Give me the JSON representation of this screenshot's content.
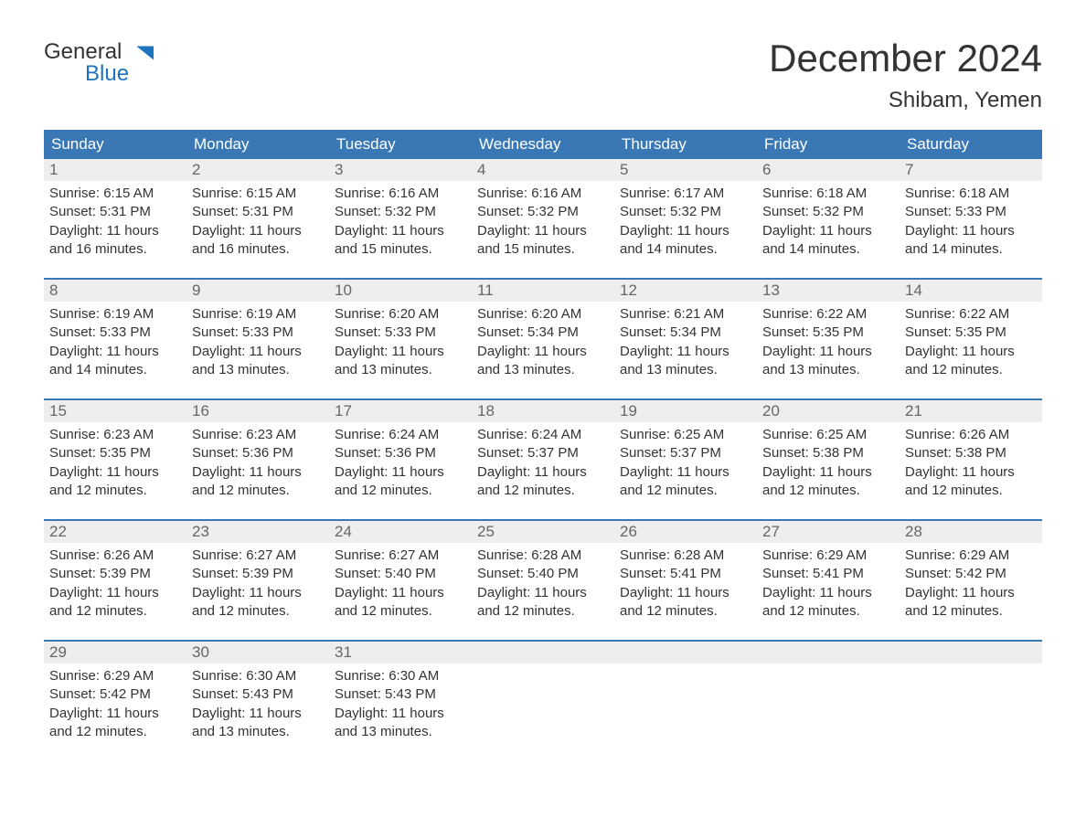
{
  "logo": {
    "word1": "General",
    "word2": "Blue"
  },
  "title": "December 2024",
  "location": "Shibam, Yemen",
  "colors": {
    "header_bg": "#3a78b5",
    "header_text": "#ffffff",
    "daynum_bg": "#eeeeee",
    "daynum_text": "#666666",
    "body_text": "#333333",
    "page_bg": "#ffffff",
    "logo_blue": "#1e73be"
  },
  "day_names": [
    "Sunday",
    "Monday",
    "Tuesday",
    "Wednesday",
    "Thursday",
    "Friday",
    "Saturday"
  ],
  "weeks": [
    [
      {
        "n": "1",
        "sunrise": "6:15 AM",
        "sunset": "5:31 PM",
        "daylight": "11 hours and 16 minutes."
      },
      {
        "n": "2",
        "sunrise": "6:15 AM",
        "sunset": "5:31 PM",
        "daylight": "11 hours and 16 minutes."
      },
      {
        "n": "3",
        "sunrise": "6:16 AM",
        "sunset": "5:32 PM",
        "daylight": "11 hours and 15 minutes."
      },
      {
        "n": "4",
        "sunrise": "6:16 AM",
        "sunset": "5:32 PM",
        "daylight": "11 hours and 15 minutes."
      },
      {
        "n": "5",
        "sunrise": "6:17 AM",
        "sunset": "5:32 PM",
        "daylight": "11 hours and 14 minutes."
      },
      {
        "n": "6",
        "sunrise": "6:18 AM",
        "sunset": "5:32 PM",
        "daylight": "11 hours and 14 minutes."
      },
      {
        "n": "7",
        "sunrise": "6:18 AM",
        "sunset": "5:33 PM",
        "daylight": "11 hours and 14 minutes."
      }
    ],
    [
      {
        "n": "8",
        "sunrise": "6:19 AM",
        "sunset": "5:33 PM",
        "daylight": "11 hours and 14 minutes."
      },
      {
        "n": "9",
        "sunrise": "6:19 AM",
        "sunset": "5:33 PM",
        "daylight": "11 hours and 13 minutes."
      },
      {
        "n": "10",
        "sunrise": "6:20 AM",
        "sunset": "5:33 PM",
        "daylight": "11 hours and 13 minutes."
      },
      {
        "n": "11",
        "sunrise": "6:20 AM",
        "sunset": "5:34 PM",
        "daylight": "11 hours and 13 minutes."
      },
      {
        "n": "12",
        "sunrise": "6:21 AM",
        "sunset": "5:34 PM",
        "daylight": "11 hours and 13 minutes."
      },
      {
        "n": "13",
        "sunrise": "6:22 AM",
        "sunset": "5:35 PM",
        "daylight": "11 hours and 13 minutes."
      },
      {
        "n": "14",
        "sunrise": "6:22 AM",
        "sunset": "5:35 PM",
        "daylight": "11 hours and 12 minutes."
      }
    ],
    [
      {
        "n": "15",
        "sunrise": "6:23 AM",
        "sunset": "5:35 PM",
        "daylight": "11 hours and 12 minutes."
      },
      {
        "n": "16",
        "sunrise": "6:23 AM",
        "sunset": "5:36 PM",
        "daylight": "11 hours and 12 minutes."
      },
      {
        "n": "17",
        "sunrise": "6:24 AM",
        "sunset": "5:36 PM",
        "daylight": "11 hours and 12 minutes."
      },
      {
        "n": "18",
        "sunrise": "6:24 AM",
        "sunset": "5:37 PM",
        "daylight": "11 hours and 12 minutes."
      },
      {
        "n": "19",
        "sunrise": "6:25 AM",
        "sunset": "5:37 PM",
        "daylight": "11 hours and 12 minutes."
      },
      {
        "n": "20",
        "sunrise": "6:25 AM",
        "sunset": "5:38 PM",
        "daylight": "11 hours and 12 minutes."
      },
      {
        "n": "21",
        "sunrise": "6:26 AM",
        "sunset": "5:38 PM",
        "daylight": "11 hours and 12 minutes."
      }
    ],
    [
      {
        "n": "22",
        "sunrise": "6:26 AM",
        "sunset": "5:39 PM",
        "daylight": "11 hours and 12 minutes."
      },
      {
        "n": "23",
        "sunrise": "6:27 AM",
        "sunset": "5:39 PM",
        "daylight": "11 hours and 12 minutes."
      },
      {
        "n": "24",
        "sunrise": "6:27 AM",
        "sunset": "5:40 PM",
        "daylight": "11 hours and 12 minutes."
      },
      {
        "n": "25",
        "sunrise": "6:28 AM",
        "sunset": "5:40 PM",
        "daylight": "11 hours and 12 minutes."
      },
      {
        "n": "26",
        "sunrise": "6:28 AM",
        "sunset": "5:41 PM",
        "daylight": "11 hours and 12 minutes."
      },
      {
        "n": "27",
        "sunrise": "6:29 AM",
        "sunset": "5:41 PM",
        "daylight": "11 hours and 12 minutes."
      },
      {
        "n": "28",
        "sunrise": "6:29 AM",
        "sunset": "5:42 PM",
        "daylight": "11 hours and 12 minutes."
      }
    ],
    [
      {
        "n": "29",
        "sunrise": "6:29 AM",
        "sunset": "5:42 PM",
        "daylight": "11 hours and 12 minutes."
      },
      {
        "n": "30",
        "sunrise": "6:30 AM",
        "sunset": "5:43 PM",
        "daylight": "11 hours and 13 minutes."
      },
      {
        "n": "31",
        "sunrise": "6:30 AM",
        "sunset": "5:43 PM",
        "daylight": "11 hours and 13 minutes."
      },
      null,
      null,
      null,
      null
    ]
  ],
  "labels": {
    "sunrise_prefix": "Sunrise: ",
    "sunset_prefix": "Sunset: ",
    "daylight_prefix": "Daylight: "
  }
}
